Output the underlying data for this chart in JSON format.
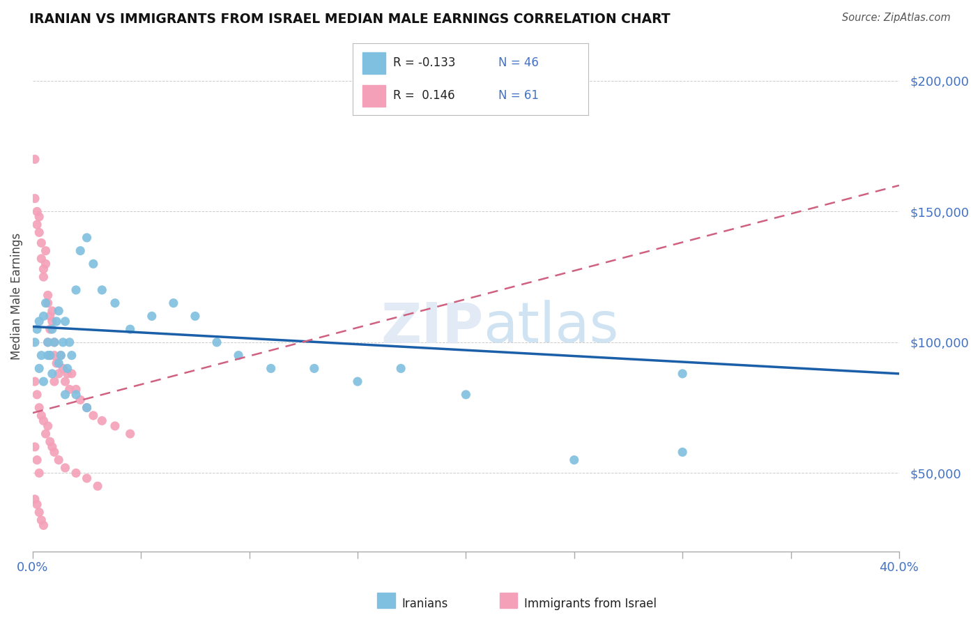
{
  "title": "IRANIAN VS IMMIGRANTS FROM ISRAEL MEDIAN MALE EARNINGS CORRELATION CHART",
  "source": "Source: ZipAtlas.com",
  "ylabel": "Median Male Earnings",
  "yticks": [
    50000,
    100000,
    150000,
    200000
  ],
  "ytick_labels": [
    "$50,000",
    "$100,000",
    "$150,000",
    "$200,000"
  ],
  "xticks": [
    0.0,
    0.05,
    0.1,
    0.15,
    0.2,
    0.25,
    0.3,
    0.35,
    0.4
  ],
  "xtick_labels": [
    "0.0%",
    "",
    "",
    "",
    "",
    "",
    "",
    "",
    "40.0%"
  ],
  "xmin": 0.0,
  "xmax": 0.4,
  "ymin": 20000,
  "ymax": 215000,
  "iranians_color": "#7fbfdf",
  "israel_color": "#f4a0b8",
  "iranians_line_color": "#1a5fa8",
  "israel_line_color": "#d06080",
  "iran_line_y0": 106000,
  "iran_line_y1": 88000,
  "israel_line_y0": 73000,
  "israel_line_y1": 160000,
  "iranians_x": [
    0.001,
    0.002,
    0.003,
    0.004,
    0.005,
    0.006,
    0.007,
    0.008,
    0.009,
    0.01,
    0.011,
    0.012,
    0.013,
    0.014,
    0.015,
    0.016,
    0.017,
    0.018,
    0.02,
    0.022,
    0.025,
    0.028,
    0.032,
    0.038,
    0.045,
    0.055,
    0.065,
    0.075,
    0.085,
    0.095,
    0.11,
    0.13,
    0.15,
    0.17,
    0.2,
    0.25,
    0.3,
    0.003,
    0.005,
    0.007,
    0.009,
    0.012,
    0.015,
    0.02,
    0.025,
    0.3
  ],
  "iranians_y": [
    100000,
    105000,
    108000,
    95000,
    110000,
    115000,
    100000,
    95000,
    105000,
    100000,
    108000,
    112000,
    95000,
    100000,
    108000,
    90000,
    100000,
    95000,
    120000,
    135000,
    140000,
    130000,
    120000,
    115000,
    105000,
    110000,
    115000,
    110000,
    100000,
    95000,
    90000,
    90000,
    85000,
    90000,
    80000,
    55000,
    58000,
    90000,
    85000,
    95000,
    88000,
    92000,
    80000,
    80000,
    75000,
    88000
  ],
  "israel_x": [
    0.001,
    0.001,
    0.002,
    0.002,
    0.003,
    0.003,
    0.004,
    0.004,
    0.005,
    0.005,
    0.006,
    0.006,
    0.007,
    0.007,
    0.008,
    0.008,
    0.009,
    0.009,
    0.01,
    0.01,
    0.011,
    0.012,
    0.013,
    0.014,
    0.015,
    0.016,
    0.017,
    0.018,
    0.02,
    0.022,
    0.025,
    0.028,
    0.032,
    0.038,
    0.045,
    0.001,
    0.002,
    0.003,
    0.004,
    0.005,
    0.006,
    0.007,
    0.008,
    0.009,
    0.01,
    0.012,
    0.015,
    0.02,
    0.025,
    0.03,
    0.001,
    0.002,
    0.003,
    0.004,
    0.005,
    0.001,
    0.002,
    0.003,
    0.007,
    0.008,
    0.01
  ],
  "israel_y": [
    170000,
    155000,
    150000,
    145000,
    142000,
    148000,
    138000,
    132000,
    128000,
    125000,
    135000,
    130000,
    115000,
    118000,
    110000,
    105000,
    112000,
    108000,
    100000,
    95000,
    92000,
    88000,
    95000,
    90000,
    85000,
    88000,
    82000,
    88000,
    82000,
    78000,
    75000,
    72000,
    70000,
    68000,
    65000,
    85000,
    80000,
    75000,
    72000,
    70000,
    65000,
    68000,
    62000,
    60000,
    58000,
    55000,
    52000,
    50000,
    48000,
    45000,
    40000,
    38000,
    35000,
    32000,
    30000,
    60000,
    55000,
    50000,
    100000,
    95000,
    85000
  ]
}
